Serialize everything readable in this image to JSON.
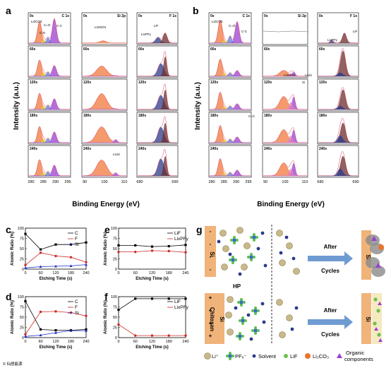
{
  "panel_labels": {
    "a": "a",
    "b": "b",
    "c": "c",
    "d": "d",
    "e": "e",
    "f": "f",
    "g": "g"
  },
  "xps": {
    "ylabel": "Intensity (a.u.)",
    "xlabel": "Binding Energy (eV)",
    "times": [
      "0s",
      "60s",
      "120s",
      "180s",
      "240s"
    ],
    "headers": [
      "C 1s",
      "Si 2p",
      "F 1s"
    ],
    "ticks_C": [
      "280",
      "285",
      "290",
      "295"
    ],
    "ticks_Si": [
      "90",
      "100",
      "110"
    ],
    "ticks_F": [
      "680",
      "690"
    ],
    "ann_a": {
      "li2co3": "Li2CO3",
      "co": "C=O",
      "c_o": "C-O",
      "cc": "C-C",
      "li2sio3": "Li2SiO3",
      "lixpfy": "LixPFy",
      "lif": "LiF",
      "lisi": "LixSi"
    },
    "ann_b": {
      "li2co3": "Li2CO3",
      "co": "C=O",
      "cc": "C-C",
      "c_eq_c": "C=C",
      "li2sio3": "Li2SiO3",
      "si": "Si",
      "lisi": "LixSi",
      "lixpfy": "LixPFy",
      "lif": "LiF"
    }
  },
  "colors": {
    "orange": "#f0783c",
    "purple": "#9b3fd0",
    "navy": "#2c3a8c",
    "brown": "#6b2e2e",
    "yellow": "#e8d23a",
    "red": "#d02828",
    "pinkline": "#e04060"
  },
  "chart_data": [
    {
      "type": "line",
      "panel": "c",
      "x": [
        0,
        60,
        120,
        180,
        240
      ],
      "xlabel": "Etching Time (s)",
      "ylabel": "Atomic Ratio (%)",
      "ylim": [
        0,
        100
      ],
      "series": [
        {
          "name": "C",
          "values": [
            86,
            48,
            60,
            60,
            65
          ]
        },
        {
          "name": "F",
          "values": [
            10,
            40,
            32,
            29,
            17
          ]
        },
        {
          "name": "Si",
          "values": [
            3,
            6,
            7,
            8,
            11
          ]
        }
      ]
    },
    {
      "type": "line",
      "panel": "d",
      "x": [
        0,
        60,
        120,
        180,
        240
      ],
      "xlabel": "Etching Time (s)",
      "ylabel": "Atomic Ratio (%)",
      "ylim": [
        0,
        100
      ],
      "series": [
        {
          "name": "C",
          "values": [
            89,
            20,
            18,
            18,
            20
          ]
        },
        {
          "name": "F",
          "values": [
            8,
            63,
            64,
            61,
            53
          ]
        },
        {
          "name": "Si",
          "values": [
            3,
            6,
            12,
            17,
            17
          ]
        }
      ]
    },
    {
      "type": "line",
      "panel": "e",
      "x": [
        0,
        60,
        120,
        180,
        240
      ],
      "xlabel": "Etching Time (s)",
      "ylabel": "Atomic Ratio (%)",
      "ylim": [
        0,
        100
      ],
      "series": [
        {
          "name": "LiF",
          "values": [
            58,
            58,
            55,
            56,
            59
          ]
        },
        {
          "name": "LixPFy",
          "values": [
            42,
            42,
            45,
            44,
            41
          ]
        }
      ]
    },
    {
      "type": "line",
      "panel": "f",
      "x": [
        0,
        60,
        120,
        180,
        240
      ],
      "xlabel": "Etching Time (s)",
      "ylabel": "Atomic Ratio (%)",
      "ylim": [
        0,
        100
      ],
      "series": [
        {
          "name": "LiF",
          "values": [
            68,
            95,
            95,
            95,
            95
          ]
        },
        {
          "name": "LixPFy",
          "values": [
            32,
            5,
            5,
            5,
            5
          ]
        }
      ]
    }
  ],
  "ticks_ratio_y": [
    "0",
    "25",
    "50",
    "75",
    "100"
  ],
  "ticks_ratio_x": [
    "0",
    "60",
    "120",
    "180",
    "240"
  ],
  "schematic": {
    "top_label": "Si",
    "bottom_label": "HP",
    "bottom_mid": "Chitosan",
    "bottom_si": "Si",
    "after": "After",
    "cycles": "Cycles",
    "legend": [
      "Li⁺",
      "PF₆⁻",
      "Solvent",
      "LiF",
      "Li₂CO₃",
      "Organic components"
    ]
  },
  "watermark": "© 仙居能源"
}
